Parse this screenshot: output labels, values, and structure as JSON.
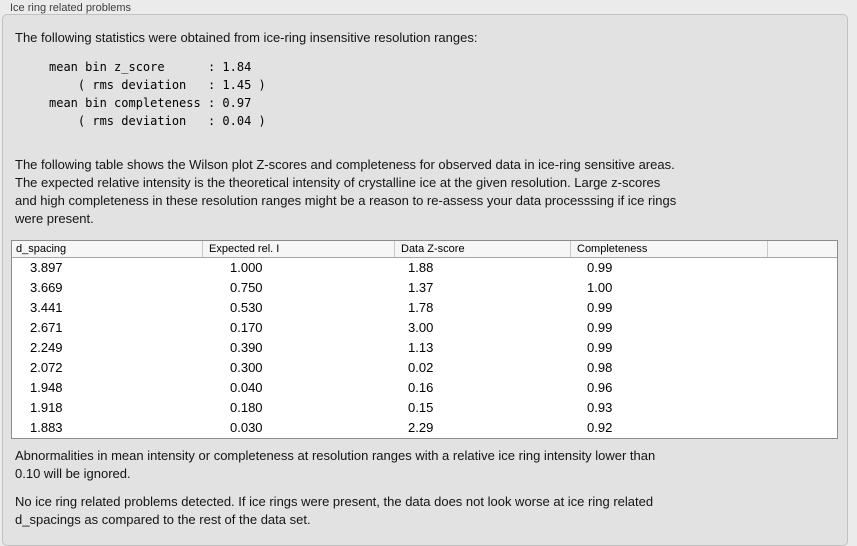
{
  "panel": {
    "title": "Ice ring related problems",
    "intro": "The following statistics were obtained from ice-ring insensitive resolution ranges:",
    "stats_block": "mean bin z_score      : 1.84\n    ( rms deviation   : 1.45 )\nmean bin completeness : 0.97\n    ( rms deviation   : 0.04 )",
    "table_description": "The following table shows the Wilson plot Z-scores and completeness for observed data in ice-ring sensitive areas.\nThe expected relative intensity is the theoretical intensity of crystalline ice at the given resolution. Large z-scores\nand high completeness in these resolution ranges might be a reason to re-assess your data processsing if ice rings\nwere present.",
    "ignore_note": "Abnormalities in mean intensity or completeness at resolution ranges with a relative ice ring intensity lower than\n0.10 will be ignored.",
    "conclusion": "No ice ring related problems detected. If ice rings were present, the data does not look worse at ice ring related\nd_spacings as compared to the rest of the data set."
  },
  "stats": {
    "mean_bin_z_score": "1.84",
    "z_score_rms_deviation": "1.45",
    "mean_bin_completeness": "0.97",
    "completeness_rms_deviation": "0.04"
  },
  "table": {
    "columns": [
      "d_spacing",
      "Expected rel. I",
      "Data Z-score",
      "Completeness"
    ],
    "rows": [
      [
        "3.897",
        "1.000",
        "1.88",
        "0.99"
      ],
      [
        "3.669",
        "0.750",
        "1.37",
        "1.00"
      ],
      [
        "3.441",
        "0.530",
        "1.78",
        "0.99"
      ],
      [
        "2.671",
        "0.170",
        "3.00",
        "0.99"
      ],
      [
        "2.249",
        "0.390",
        "1.13",
        "0.99"
      ],
      [
        "2.072",
        "0.300",
        "0.02",
        "0.98"
      ],
      [
        "1.948",
        "0.040",
        "0.16",
        "0.96"
      ],
      [
        "1.918",
        "0.180",
        "0.15",
        "0.93"
      ],
      [
        "1.883",
        "0.030",
        "2.29",
        "0.92"
      ]
    ]
  },
  "colors": {
    "window_bg": "#ebebeb",
    "panel_bg": "#e2e2e2",
    "panel_border": "#c2c2c2",
    "table_border": "#8c8c8c",
    "table_header_bg": "#f6f6f6",
    "header_separator": "#c9c9c9",
    "text": "#141414"
  }
}
